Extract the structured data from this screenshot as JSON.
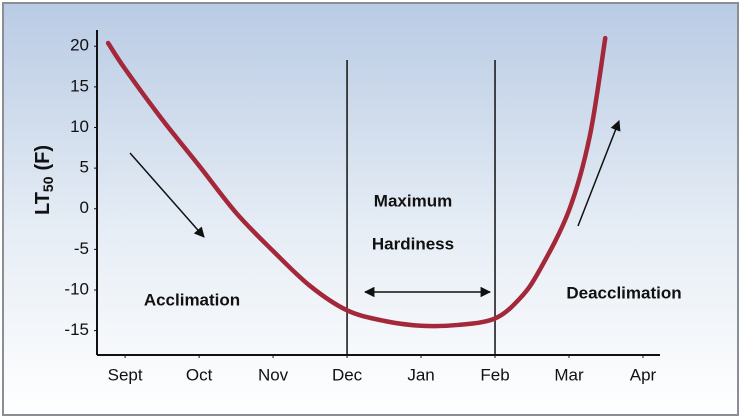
{
  "chart_data": {
    "type": "line",
    "y_label": {
      "main": "LT",
      "sub": "50",
      "unit": "(F)"
    },
    "x": [
      -0.23,
      0,
      0.5,
      1,
      1.5,
      2,
      2.5,
      3,
      3.5,
      4,
      4.5,
      5,
      5.34,
      5.6,
      6,
      6.28,
      6.49
    ],
    "series": [
      {
        "color": "#a3283a",
        "values": [
          20.4,
          17.2,
          11,
          5.3,
          -0.5,
          -5.2,
          -9.5,
          -12.5,
          -13.8,
          -14.4,
          -14.3,
          -13.5,
          -11,
          -7.6,
          -0.2,
          8.9,
          21
        ]
      }
    ],
    "xlim": [
      -0.38,
      7.23
    ],
    "xticks": [
      {
        "value": 0,
        "label": "Sept"
      },
      {
        "value": 1,
        "label": "Oct"
      },
      {
        "value": 2,
        "label": "Nov"
      },
      {
        "value": 3,
        "label": "Dec"
      },
      {
        "value": 4,
        "label": "Jan"
      },
      {
        "value": 5,
        "label": "Feb"
      },
      {
        "value": 6,
        "label": "Mar"
      },
      {
        "value": 7,
        "label": "Apr"
      }
    ],
    "ylim": [
      -18,
      22
    ],
    "yticks": [
      20,
      15,
      10,
      5,
      0,
      -5,
      -10,
      -15
    ],
    "vlines": [
      3,
      5
    ],
    "annotations": [
      "Acclimation",
      "Maximum",
      "Hardiness",
      "Deacclimation"
    ]
  }
}
